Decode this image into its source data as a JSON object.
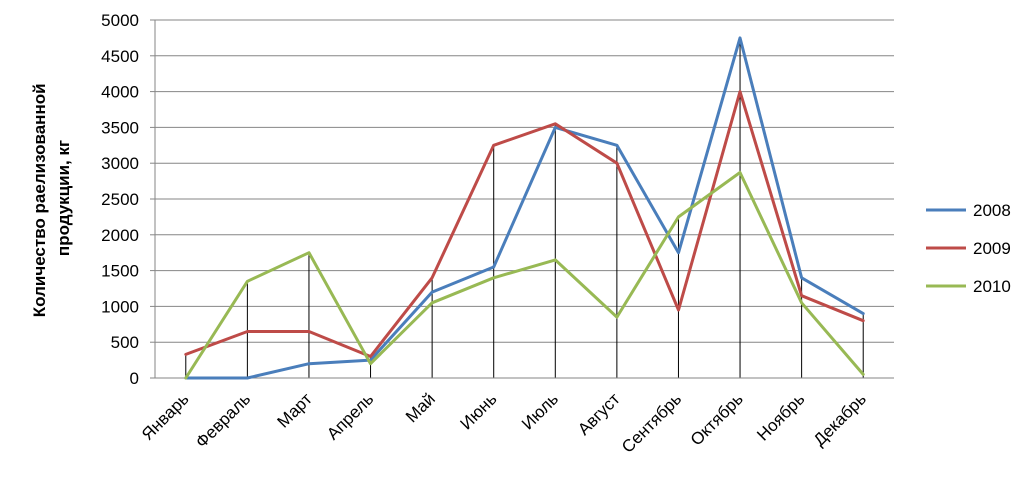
{
  "chart_data": {
    "type": "line",
    "ylabel_line1": "Количество раелизованной",
    "ylabel_line2": "продукции, кг",
    "categories": [
      "Январь",
      "Февраль",
      "Март",
      "Апрель",
      "Май",
      "Июнь",
      "Июль",
      "Август",
      "Сентябрь",
      "Октябрь",
      "Ноябрь",
      "Декабрь"
    ],
    "yticks": [
      0,
      500,
      1000,
      1500,
      2000,
      2500,
      3000,
      3500,
      4000,
      4500,
      5000
    ],
    "ylim": [
      0,
      5000
    ],
    "grid": true,
    "legend_position": "right",
    "drop_lines": true,
    "series": [
      {
        "name": "2008",
        "color": "#4a7ebb",
        "values": [
          0,
          0,
          200,
          250,
          1200,
          1550,
          3500,
          3250,
          1750,
          4750,
          1400,
          900
        ]
      },
      {
        "name": "2009",
        "color": "#be4b48",
        "values": [
          330,
          650,
          650,
          300,
          1400,
          3250,
          3550,
          3000,
          950,
          4000,
          1150,
          800
        ]
      },
      {
        "name": "2010",
        "color": "#98b954",
        "values": [
          0,
          1350,
          1750,
          200,
          1050,
          1400,
          1650,
          850,
          2250,
          2870,
          1050,
          50
        ]
      }
    ]
  }
}
